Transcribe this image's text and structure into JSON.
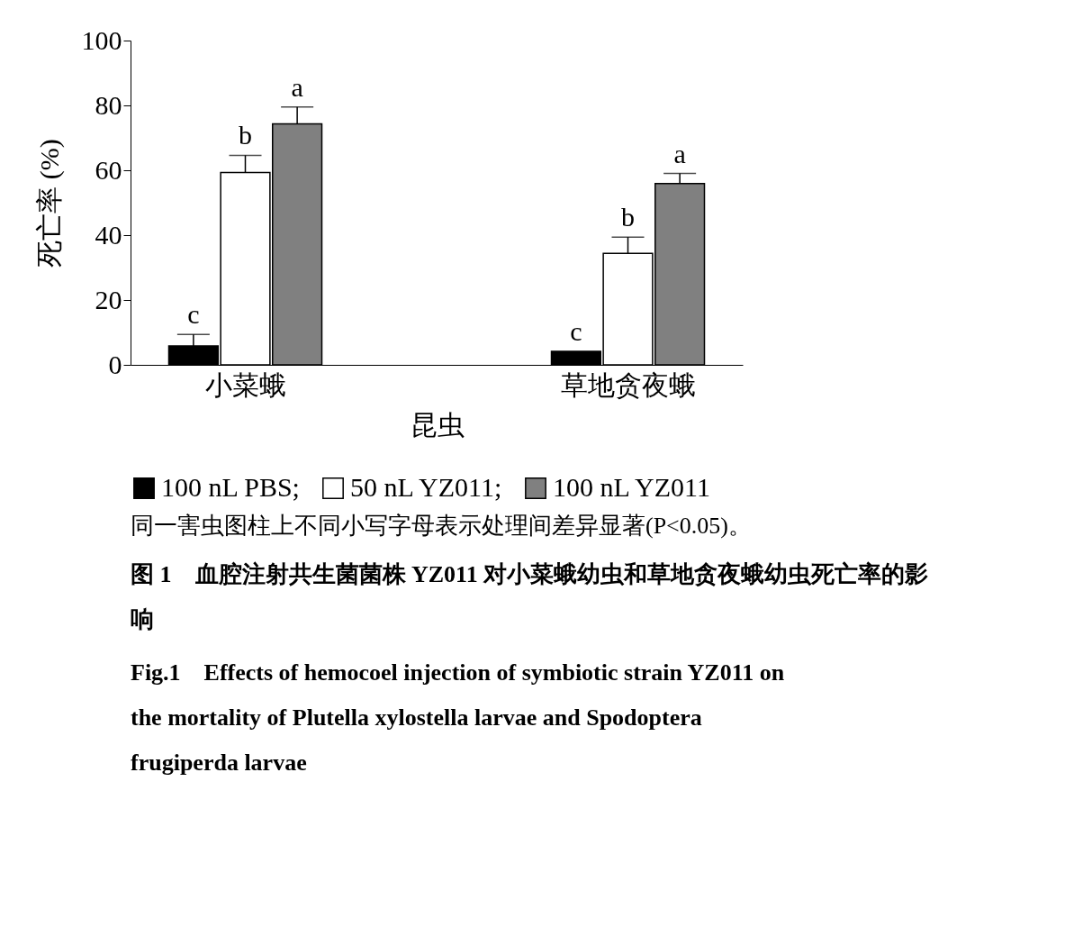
{
  "chart_data": {
    "type": "bar",
    "title": "图 1　血腔注射共生菌菌株 YZ011 对小菜蛾幼虫和草地贪夜蛾幼虫死亡率的影响",
    "subtitle": "Fig.1　Effects of hemocoel injection of symbiotic strain YZ011 on the mortality of Plutella xylostella larvae and Spodoptera frugiperda larvae",
    "xlabel": "昆虫",
    "ylabel": "死亡率 (%)",
    "categories": [
      "小菜蛾",
      "草地贪夜蛾"
    ],
    "series": [
      {
        "name": "100 nL PBS;",
        "color": "#000000",
        "values": [
          5.8,
          4.2
        ],
        "errors": [
          [
            5.8,
            9.4
          ],
          null
        ],
        "value_labels": [
          "c",
          "c"
        ]
      },
      {
        "name": "50 nL YZ011;",
        "color": "#ffffff",
        "values": [
          59.3,
          34.4
        ],
        "errors": [
          [
            59.3,
            64.6
          ],
          [
            34.4,
            39.4
          ]
        ],
        "value_labels": [
          "b",
          "b"
        ]
      },
      {
        "name": "100 nL YZ011",
        "color": "#808080",
        "values": [
          74.3,
          55.9
        ],
        "errors": [
          [
            74.3,
            79.5
          ],
          [
            55.9,
            59.0
          ]
        ],
        "value_labels": [
          "a",
          "a"
        ]
      }
    ],
    "ylim": [
      0,
      100
    ],
    "yticks": [
      0,
      20,
      40,
      60,
      80,
      100
    ],
    "grid": false,
    "legend": "bottom",
    "annotations": [
      "同一害虫图柱上不同小写字母表示处理间差异显著(P<0.05)。"
    ]
  }
}
